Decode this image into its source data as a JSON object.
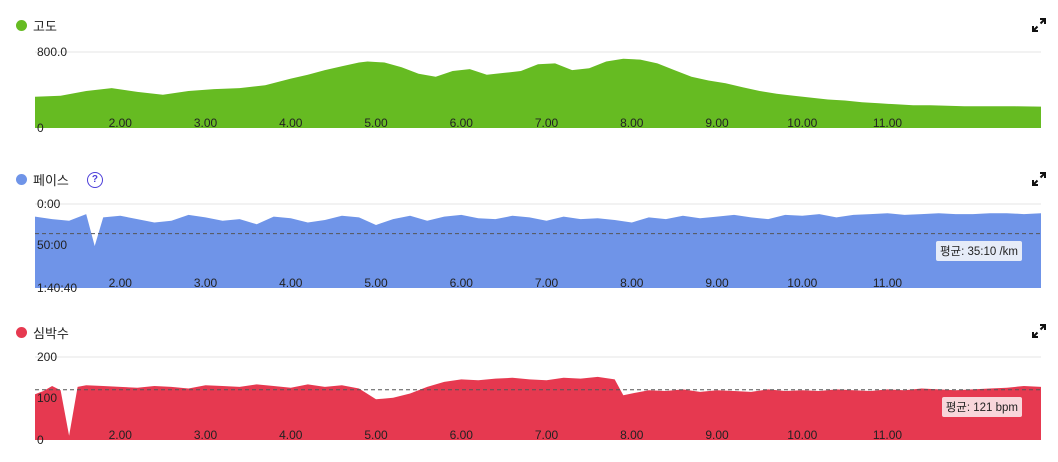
{
  "icons": {
    "expand": "expand-icon",
    "help": "help-icon",
    "series_dot": "legend-dot-icon"
  },
  "chart_data": [
    {
      "type": "area",
      "title": "고도",
      "color": "#66bb22",
      "ylim": [
        0,
        800
      ],
      "ytick_labels": [
        "800.0",
        "0"
      ],
      "xlim": [
        1.0,
        12.8
      ],
      "xtick_labels": [
        "2.00",
        "3.00",
        "4.00",
        "5.00",
        "6.00",
        "7.00",
        "8.00",
        "9.00",
        "10.00",
        "11.00"
      ],
      "x": [
        1.0,
        1.3,
        1.6,
        1.9,
        2.2,
        2.5,
        2.8,
        3.1,
        3.4,
        3.7,
        4.0,
        4.2,
        4.4,
        4.6,
        4.8,
        4.9,
        5.1,
        5.3,
        5.5,
        5.7,
        5.9,
        6.1,
        6.3,
        6.5,
        6.7,
        6.9,
        7.1,
        7.3,
        7.5,
        7.7,
        7.9,
        8.1,
        8.3,
        8.5,
        8.7,
        8.9,
        9.1,
        9.3,
        9.5,
        9.7,
        9.9,
        10.1,
        10.3,
        10.5,
        10.7,
        10.9,
        11.1,
        11.3,
        11.5,
        11.7,
        11.9,
        12.1,
        12.3,
        12.5,
        12.8
      ],
      "y": [
        330,
        340,
        390,
        420,
        380,
        350,
        390,
        410,
        420,
        450,
        520,
        560,
        610,
        650,
        690,
        700,
        690,
        640,
        570,
        540,
        600,
        620,
        560,
        580,
        600,
        670,
        680,
        610,
        630,
        700,
        730,
        720,
        680,
        610,
        540,
        500,
        470,
        430,
        390,
        360,
        340,
        320,
        300,
        290,
        270,
        260,
        250,
        240,
        240,
        235,
        230,
        230,
        228,
        228,
        225
      ]
    },
    {
      "type": "area",
      "title": "페이스",
      "color": "#6f94e8",
      "ylim": [
        0,
        100
      ],
      "y_inverted": true,
      "ytick_labels": [
        "0:00",
        "50:00",
        "1:40:40"
      ],
      "xlim": [
        1.0,
        12.8
      ],
      "xtick_labels": [
        "2.00",
        "3.00",
        "4.00",
        "5.00",
        "6.00",
        "7.00",
        "8.00",
        "9.00",
        "10.00",
        "11.00"
      ],
      "avg_label": "평균: 35:10 /km",
      "avg_value_min": 35.2,
      "x": [
        1.0,
        1.2,
        1.4,
        1.6,
        1.7,
        1.8,
        2.0,
        2.2,
        2.4,
        2.6,
        2.8,
        3.0,
        3.2,
        3.4,
        3.6,
        3.8,
        4.0,
        4.2,
        4.4,
        4.6,
        4.8,
        5.0,
        5.2,
        5.4,
        5.6,
        5.8,
        6.0,
        6.2,
        6.4,
        6.6,
        6.8,
        7.0,
        7.2,
        7.4,
        7.6,
        7.8,
        8.0,
        8.2,
        8.4,
        8.6,
        8.8,
        9.0,
        9.2,
        9.4,
        9.6,
        9.8,
        10.0,
        10.2,
        10.4,
        10.6,
        10.8,
        11.0,
        11.2,
        11.4,
        11.6,
        11.8,
        12.0,
        12.2,
        12.4,
        12.6,
        12.8
      ],
      "y": [
        15,
        18,
        20,
        12,
        50,
        16,
        14,
        18,
        22,
        20,
        13,
        16,
        20,
        18,
        24,
        15,
        17,
        22,
        19,
        14,
        16,
        25,
        18,
        14,
        20,
        15,
        13,
        17,
        18,
        14,
        16,
        20,
        15,
        18,
        17,
        19,
        22,
        16,
        18,
        14,
        17,
        15,
        13,
        16,
        18,
        13,
        14,
        12,
        16,
        13,
        12,
        11,
        13,
        12,
        11,
        12,
        12,
        11,
        11,
        12,
        11
      ]
    },
    {
      "type": "area",
      "title": "심박수",
      "color": "#e63950",
      "ylim": [
        0,
        200
      ],
      "ytick_labels": [
        "200",
        "100",
        "0"
      ],
      "xlim": [
        1.0,
        12.8
      ],
      "xtick_labels": [
        "2.00",
        "3.00",
        "4.00",
        "5.00",
        "6.00",
        "7.00",
        "8.00",
        "9.00",
        "10.00",
        "11.00"
      ],
      "avg_label": "평균: 121 bpm",
      "avg_value": 121,
      "x": [
        1.0,
        1.1,
        1.2,
        1.3,
        1.4,
        1.5,
        1.6,
        1.8,
        2.0,
        2.2,
        2.4,
        2.6,
        2.8,
        3.0,
        3.2,
        3.4,
        3.6,
        3.8,
        4.0,
        4.2,
        4.4,
        4.6,
        4.8,
        5.0,
        5.2,
        5.4,
        5.6,
        5.8,
        6.0,
        6.2,
        6.4,
        6.6,
        6.8,
        7.0,
        7.2,
        7.4,
        7.6,
        7.8,
        7.9,
        8.0,
        8.2,
        8.4,
        8.6,
        8.8,
        9.0,
        9.2,
        9.4,
        9.6,
        9.8,
        10.0,
        10.2,
        10.4,
        10.6,
        10.8,
        11.0,
        11.2,
        11.4,
        11.6,
        11.8,
        12.0,
        12.2,
        12.4,
        12.6,
        12.8
      ],
      "y": [
        110,
        118,
        130,
        120,
        10,
        128,
        132,
        130,
        128,
        126,
        130,
        128,
        124,
        132,
        130,
        128,
        134,
        130,
        126,
        134,
        128,
        132,
        124,
        98,
        102,
        112,
        128,
        140,
        146,
        144,
        148,
        150,
        146,
        144,
        150,
        148,
        152,
        146,
        108,
        112,
        120,
        118,
        122,
        116,
        120,
        118,
        116,
        122,
        118,
        120,
        118,
        122,
        120,
        118,
        122,
        120,
        124,
        122,
        120,
        122,
        124,
        126,
        130,
        128
      ]
    }
  ]
}
